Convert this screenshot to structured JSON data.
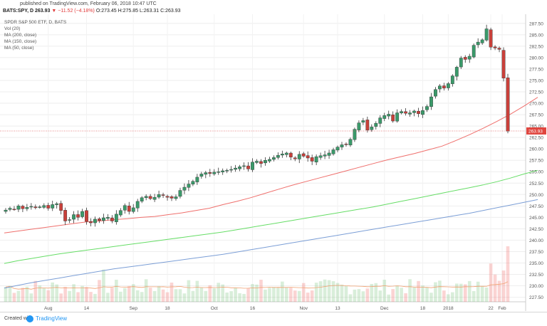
{
  "header": {
    "published": "published on TradingView.com, February 06, 2018 10:47 UTC",
    "symbol": "BATS:SPY, D",
    "last": "263.93",
    "change": "▼ −11.52 (−4.18%)",
    "ohlc": "O:273.45 H:275.85 L:263.31 C:263.93"
  },
  "legend": {
    "title": "SPDR S&P 500 ETF, D, BATS",
    "vol": "Vol (20)",
    "ma200": "MA (200, close)",
    "ma150": "MA (150, close)",
    "ma50": "MA (50, close)"
  },
  "footer": {
    "charts_with": "Created with",
    "brand": "TradingView"
  },
  "chart_data": {
    "type": "candlestick",
    "x_tick_labels": [
      "Aug",
      "14",
      "Sep",
      "18",
      "Oct",
      "16",
      "Nov",
      "13",
      "Dec",
      "18",
      "2018",
      "22",
      "Feb"
    ],
    "y_tick_labels": [
      "227.50",
      "230.00",
      "232.50",
      "235.00",
      "237.50",
      "240.00",
      "242.50",
      "245.00",
      "247.50",
      "250.00",
      "252.50",
      "255.00",
      "257.50",
      "260.00",
      "262.50",
      "265.00",
      "267.50",
      "270.00",
      "272.50",
      "275.00",
      "277.50",
      "280.00",
      "282.50",
      "285.00",
      "287.50"
    ],
    "price_range": [
      226.5,
      289.5
    ],
    "last_price_label": "263.93",
    "closes": [
      246.6,
      247.0,
      246.8,
      247.5,
      246.9,
      247.2,
      247.4,
      247.1,
      247.3,
      247.6,
      247.0,
      247.8,
      248.0,
      246.5,
      244.2,
      244.5,
      245.6,
      245.0,
      246.3,
      244.1,
      243.8,
      244.6,
      244.3,
      244.9,
      245.0,
      244.2,
      245.7,
      246.5,
      247.6,
      246.3,
      247.1,
      248.5,
      249.3,
      249.6,
      249.1,
      249.4,
      250.0,
      249.8,
      249.4,
      249.2,
      249.5,
      250.9,
      251.6,
      252.3,
      252.9,
      253.8,
      254.5,
      254.8,
      254.6,
      254.9,
      255.0,
      255.2,
      255.3,
      255.5,
      255.8,
      256.1,
      256.3,
      255.6,
      257.1,
      257.3,
      256.8,
      257.5,
      257.7,
      258.1,
      258.6,
      258.9,
      259.1,
      258.2,
      257.8,
      258.8,
      258.4,
      258.0,
      257.3,
      258.3,
      258.5,
      258.7,
      259.1,
      259.8,
      260.4,
      260.9,
      261.0,
      262.1,
      264.3,
      265.7,
      266.2,
      264.1,
      264.8,
      265.6,
      266.8,
      267.3,
      267.6,
      266.1,
      267.9,
      268.2,
      267.8,
      267.9,
      268.3,
      267.7,
      268.4,
      269.3,
      271.4,
      273.0,
      273.8,
      273.3,
      274.3,
      276.0,
      277.9,
      279.9,
      279.6,
      280.3,
      282.7,
      283.4,
      283.9,
      286.3,
      282.3,
      282.1,
      281.8,
      275.5,
      263.9
    ],
    "series": [
      {
        "name": "MA (50, close)",
        "color": "#ef6f6c",
        "values": [
          241.6,
          242.0,
          242.4,
          242.8,
          243.2,
          243.6,
          244.0,
          244.2,
          244.5,
          244.7,
          245.0,
          245.2,
          245.6,
          246.0,
          246.5,
          247.0,
          247.8,
          248.5,
          249.3,
          250.2,
          251.1,
          252.0,
          252.8,
          253.6,
          254.4,
          255.2,
          256.0,
          256.8,
          257.6,
          258.3,
          259.0,
          259.8,
          260.6,
          261.8,
          263.1,
          264.5,
          266.0,
          267.6,
          269.4,
          271.3
        ]
      },
      {
        "name": "MA (150, close)",
        "color": "#66dd66",
        "values": [
          234.9,
          235.5,
          236.0,
          236.5,
          237.0,
          237.4,
          237.8,
          238.2,
          238.6,
          239.0,
          239.4,
          239.8,
          240.2,
          240.6,
          241.0,
          241.4,
          241.8,
          242.3,
          242.8,
          243.3,
          243.8,
          244.3,
          244.8,
          245.3,
          245.8,
          246.3,
          246.8,
          247.3,
          247.9,
          248.5,
          249.1,
          249.7,
          250.3,
          250.9,
          251.5,
          252.1,
          252.8,
          253.6,
          254.5,
          255.3
        ]
      },
      {
        "name": "MA (200, close)",
        "color": "#7b9ed6",
        "values": [
          229.5,
          230.1,
          230.7,
          231.2,
          231.7,
          232.2,
          232.7,
          233.2,
          233.7,
          234.1,
          234.5,
          234.9,
          235.3,
          235.7,
          236.1,
          236.5,
          236.9,
          237.4,
          237.9,
          238.4,
          238.9,
          239.4,
          239.9,
          240.4,
          240.9,
          241.4,
          241.9,
          242.4,
          242.9,
          243.4,
          243.9,
          244.4,
          244.9,
          245.4,
          245.9,
          246.5,
          247.1,
          247.7,
          248.3,
          248.9
        ]
      }
    ]
  }
}
